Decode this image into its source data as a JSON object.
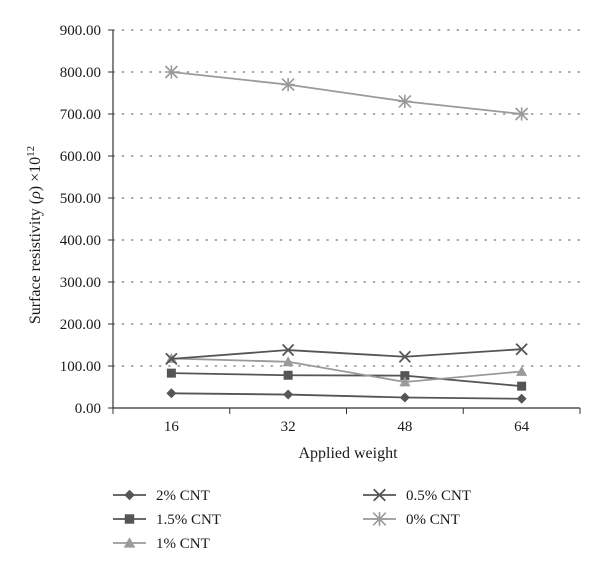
{
  "chart_data": {
    "type": "line",
    "title": "",
    "xlabel": "Applied weight",
    "ylabel_main": "Surface resistivity (",
    "ylabel_rho": "ρ",
    "ylabel_times": ") ×10",
    "ylabel_exp": "12",
    "categories": [
      "16",
      "32",
      "48",
      "64"
    ],
    "yticks": [
      "0.00",
      "100.00",
      "200.00",
      "300.00",
      "400.00",
      "500.00",
      "600.00",
      "700.00",
      "800.00",
      "900.00"
    ],
    "ylim": [
      0,
      900
    ],
    "grid": true,
    "legend_position": "bottom",
    "series": [
      {
        "name": "2% CNT",
        "marker": "diamond",
        "color": "#555555",
        "values": [
          35,
          32,
          25,
          22
        ]
      },
      {
        "name": "1.5% CNT",
        "marker": "square",
        "color": "#555555",
        "values": [
          83,
          78,
          77,
          52
        ]
      },
      {
        "name": "1% CNT",
        "marker": "triangle",
        "color": "#9a9a9a",
        "values": [
          118,
          110,
          62,
          87
        ]
      },
      {
        "name": "0.5% CNT",
        "marker": "x",
        "color": "#555555",
        "values": [
          117,
          138,
          122,
          140
        ]
      },
      {
        "name": "0% CNT",
        "marker": "star",
        "color": "#9a9a9a",
        "values": [
          800,
          770,
          730,
          700
        ]
      }
    ]
  }
}
